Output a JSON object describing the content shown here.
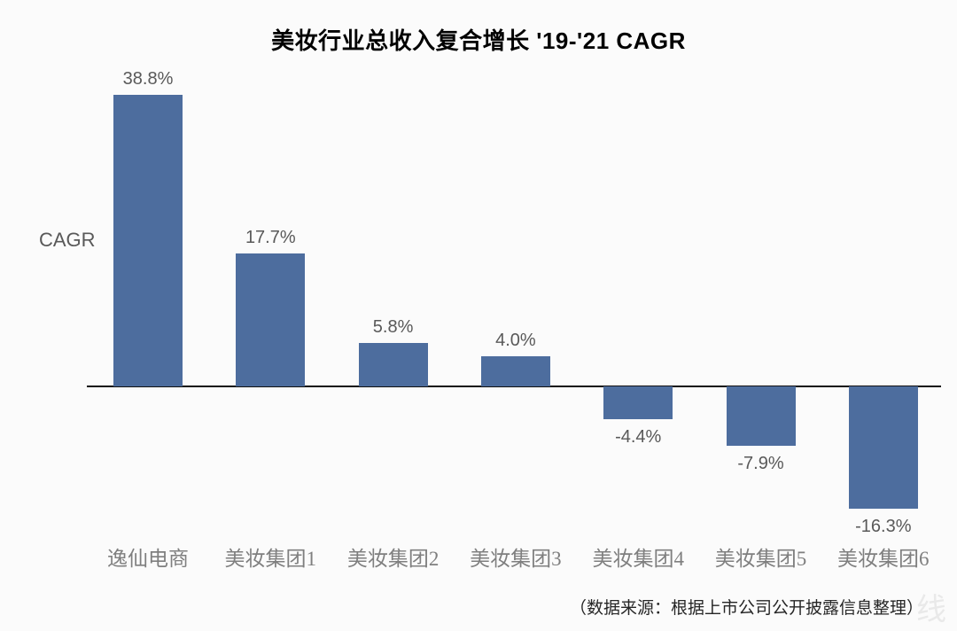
{
  "chart_data": {
    "type": "bar",
    "title": "美妆行业总收入复合增长 '19-'21 CAGR",
    "ylabel": "CAGR",
    "xlabel": "",
    "categories": [
      "逸仙电商",
      "美妆集团1",
      "美妆集团2",
      "美妆集团3",
      "美妆集团4",
      "美妆集团5",
      "美妆集团6"
    ],
    "values": [
      38.8,
      17.7,
      5.8,
      4.0,
      -4.4,
      -7.9,
      -16.3
    ],
    "value_labels": [
      "38.8%",
      "17.7%",
      "5.8%",
      "4.0%",
      "-4.4%",
      "-7.9%",
      "-16.3%"
    ],
    "ylim": [
      -20,
      45
    ],
    "grid": false,
    "legend": false,
    "bar_color": "#4d6d9e",
    "value_label_color": "#595959",
    "category_label_color": "#7f7f7f",
    "axis_color": "#111111",
    "title_color": "#000000"
  },
  "footer": {
    "source_note": "（数据来源：根据上市公司公开披露信息整理）",
    "watermark_fragment": "线"
  }
}
